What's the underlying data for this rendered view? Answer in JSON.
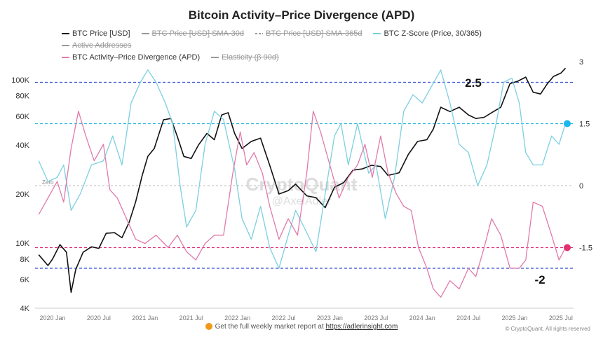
{
  "chart_data": {
    "type": "line",
    "title": "Bitcoin Activity–Price Divergence (APD)",
    "legend": [
      {
        "name": "BTC Price [USD]",
        "color": "#111111",
        "active": true,
        "style": "solid"
      },
      {
        "name": "BTC Price [USD] SMA-30d",
        "color": "#999999",
        "active": false,
        "style": "solid"
      },
      {
        "name": "BTC Price [USD] SMA-365d",
        "color": "#999999",
        "active": false,
        "style": "dashed"
      },
      {
        "name": "BTC Z-Score (Price, 30/365)",
        "color": "#7ccfe0",
        "active": true,
        "style": "solid"
      },
      {
        "name": "Active Addresses",
        "color": "#999999",
        "active": false,
        "style": "solid"
      },
      {
        "name": "BTC Activity–Price Divergence (APD)",
        "color": "#e07aaa",
        "active": true,
        "style": "solid"
      },
      {
        "name": "Elasticity (β 90d)",
        "color": "#999999",
        "active": false,
        "style": "solid"
      }
    ],
    "legend_placement": "top",
    "x_ticks": [
      "2020 Jan",
      "2020 Jul",
      "2021 Jan",
      "2021 Jul",
      "2022 Jan",
      "2022 Jul",
      "2023 Jan",
      "2023 Jul",
      "2024 Jan",
      "2024 Jul",
      "2025 Jan",
      "2025 Jul"
    ],
    "left_axis": {
      "scale": "log",
      "range": [
        4000,
        140000
      ],
      "ticks": [
        {
          "v": 4000,
          "label": "4K"
        },
        {
          "v": 6000,
          "label": "6K"
        },
        {
          "v": 8000,
          "label": "8K"
        },
        {
          "v": 10000,
          "label": "10K"
        },
        {
          "v": 20000,
          "label": "20K"
        },
        {
          "v": 40000,
          "label": "40K"
        },
        {
          "v": 60000,
          "label": "60K"
        },
        {
          "v": 80000,
          "label": "80K"
        },
        {
          "v": 100000,
          "label": "100K"
        }
      ]
    },
    "right_axis": {
      "scale": "linear",
      "range": [
        -3,
        3
      ],
      "ticks": [
        {
          "v": 3,
          "label": "3"
        },
        {
          "v": 1.5,
          "label": "1.5"
        },
        {
          "v": 0,
          "label": "0"
        },
        {
          "v": -1.5,
          "label": "-1.5"
        }
      ]
    },
    "reference_lines": [
      {
        "value": 2.5,
        "color": "#3050d0",
        "label": "2.5"
      },
      {
        "value": 1.5,
        "color": "#30b8e0",
        "label": ""
      },
      {
        "value": 0,
        "color": "#bbbbbb",
        "label": "Zero"
      },
      {
        "value": -1.5,
        "color": "#e0307a",
        "label": ""
      },
      {
        "value": -2,
        "color": "#3050d0",
        "label": "-2"
      }
    ],
    "markers": [
      {
        "value": 1.5,
        "color": "#1ab8ee"
      },
      {
        "value": -1.5,
        "color": "#e0306e"
      }
    ],
    "series": [
      {
        "name": "BTC Price [USD]",
        "axis": "left",
        "color": "#111111",
        "x": [
          2019.85,
          2019.95,
          2020.0,
          2020.08,
          2020.15,
          2020.2,
          2020.25,
          2020.33,
          2020.42,
          2020.5,
          2020.58,
          2020.67,
          2020.75,
          2020.83,
          2020.9,
          2020.97,
          2021.03,
          2021.1,
          2021.2,
          2021.28,
          2021.35,
          2021.42,
          2021.5,
          2021.58,
          2021.67,
          2021.75,
          2021.83,
          2021.9,
          2021.97,
          2022.05,
          2022.15,
          2022.25,
          2022.35,
          2022.45,
          2022.55,
          2022.63,
          2022.75,
          2022.85,
          2022.95,
          2023.05,
          2023.15,
          2023.25,
          2023.35,
          2023.45,
          2023.55,
          2023.63,
          2023.75,
          2023.85,
          2023.95,
          2024.05,
          2024.12,
          2024.2,
          2024.3,
          2024.4,
          2024.5,
          2024.58,
          2024.67,
          2024.75,
          2024.85,
          2024.95,
          2025.03,
          2025.12,
          2025.2,
          2025.28,
          2025.35,
          2025.42,
          2025.5,
          2025.55
        ],
        "y": [
          8500,
          7300,
          8000,
          9800,
          8800,
          5000,
          6900,
          8800,
          9500,
          9300,
          11500,
          11600,
          10800,
          13500,
          18000,
          26000,
          34000,
          38000,
          57000,
          58000,
          45000,
          34000,
          33000,
          40000,
          47000,
          43000,
          61000,
          63000,
          47000,
          38000,
          42000,
          44000,
          30000,
          20000,
          21000,
          23000,
          19500,
          19000,
          16500,
          22000,
          23500,
          28000,
          28500,
          30000,
          29500,
          26000,
          27000,
          35000,
          42000,
          43000,
          50000,
          68000,
          64000,
          68000,
          61000,
          58000,
          59000,
          63000,
          68000,
          95000,
          98000,
          104000,
          84000,
          82000,
          94000,
          105000,
          110000,
          118000
        ]
      },
      {
        "name": "BTC Z-Score (Price, 30/365)",
        "axis": "right",
        "color": "#7ccfe0",
        "x": [
          2019.85,
          2019.95,
          2020.05,
          2020.12,
          2020.2,
          2020.3,
          2020.42,
          2020.55,
          2020.65,
          2020.75,
          2020.85,
          2020.95,
          2021.03,
          2021.12,
          2021.22,
          2021.3,
          2021.38,
          2021.45,
          2021.55,
          2021.65,
          2021.75,
          2021.85,
          2021.97,
          2022.05,
          2022.15,
          2022.25,
          2022.35,
          2022.45,
          2022.55,
          2022.63,
          2022.72,
          2022.85,
          2022.95,
          2023.05,
          2023.12,
          2023.2,
          2023.3,
          2023.42,
          2023.5,
          2023.6,
          2023.7,
          2023.8,
          2023.9,
          2024.0,
          2024.1,
          2024.2,
          2024.3,
          2024.4,
          2024.5,
          2024.6,
          2024.7,
          2024.8,
          2024.88,
          2024.97,
          2025.05,
          2025.12,
          2025.2,
          2025.3,
          2025.4,
          2025.48,
          2025.55
        ],
        "y": [
          0.6,
          0.1,
          0.2,
          0.5,
          -0.6,
          -0.2,
          0.5,
          0.6,
          1.2,
          0.5,
          2.0,
          2.5,
          2.8,
          2.5,
          2.0,
          1.5,
          0,
          -1.0,
          -0.6,
          1.0,
          1.8,
          1.6,
          0.4,
          -0.8,
          -1.3,
          -0.5,
          -1.5,
          -2.0,
          -1.2,
          -0.6,
          -1.0,
          -1.6,
          -0.2,
          1.2,
          1.5,
          0.5,
          1.5,
          0.3,
          0.5,
          -0.8,
          0.2,
          1.8,
          2.2,
          2.0,
          2.4,
          2.8,
          2.0,
          1.0,
          0.8,
          0.0,
          0.5,
          1.5,
          2.5,
          2.6,
          2.0,
          0.8,
          0.5,
          0.5,
          1.2,
          1.0,
          1.5
        ]
      },
      {
        "name": "BTC Activity–Price Divergence (APD)",
        "axis": "right",
        "color": "#e07aaa",
        "x": [
          2019.85,
          2019.95,
          2020.05,
          2020.12,
          2020.2,
          2020.28,
          2020.36,
          2020.45,
          2020.55,
          2020.62,
          2020.7,
          2020.8,
          2020.9,
          2021.0,
          2021.12,
          2021.25,
          2021.35,
          2021.45,
          2021.55,
          2021.65,
          2021.75,
          2021.85,
          2021.95,
          2022.03,
          2022.1,
          2022.18,
          2022.27,
          2022.35,
          2022.45,
          2022.55,
          2022.65,
          2022.75,
          2022.82,
          2022.9,
          2023.0,
          2023.1,
          2023.2,
          2023.3,
          2023.38,
          2023.46,
          2023.55,
          2023.63,
          2023.72,
          2023.8,
          2023.88,
          2023.96,
          2024.05,
          2024.12,
          2024.2,
          2024.3,
          2024.4,
          2024.5,
          2024.58,
          2024.67,
          2024.75,
          2024.85,
          2024.95,
          2025.05,
          2025.12,
          2025.2,
          2025.3,
          2025.4,
          2025.48,
          2025.55
        ],
        "y": [
          -0.7,
          -0.3,
          0.1,
          -0.4,
          0.9,
          1.8,
          1.2,
          0.6,
          1.0,
          -0.1,
          -0.3,
          -0.8,
          -1.3,
          -1.4,
          -1.2,
          -1.5,
          -1.2,
          -1.6,
          -1.8,
          -1.4,
          -1.2,
          -1.2,
          0.3,
          1.3,
          0.5,
          0.8,
          0.3,
          -0.5,
          -1.3,
          -0.8,
          -1.2,
          0.3,
          1.8,
          1.3,
          0.5,
          -0.3,
          0.2,
          0.5,
          1.0,
          0.2,
          1.2,
          0.3,
          -0.2,
          -0.5,
          -0.6,
          -1.5,
          -2.0,
          -2.5,
          -2.7,
          -2.3,
          -2.5,
          -2.0,
          -2.2,
          -1.5,
          -0.8,
          -1.2,
          -2.0,
          -2.0,
          -1.8,
          -0.4,
          -0.5,
          -1.2,
          -1.8,
          -1.5
        ]
      }
    ],
    "annotations": [
      "2.5",
      "-2",
      "Zero"
    ],
    "watermark": "CryptoQuant @AxelAdler"
  },
  "footer": {
    "text": "Get the full weekly market report at ",
    "link": "https://adlerinsight.com",
    "copyright": "© CryptoQuant. All rights reserved"
  }
}
